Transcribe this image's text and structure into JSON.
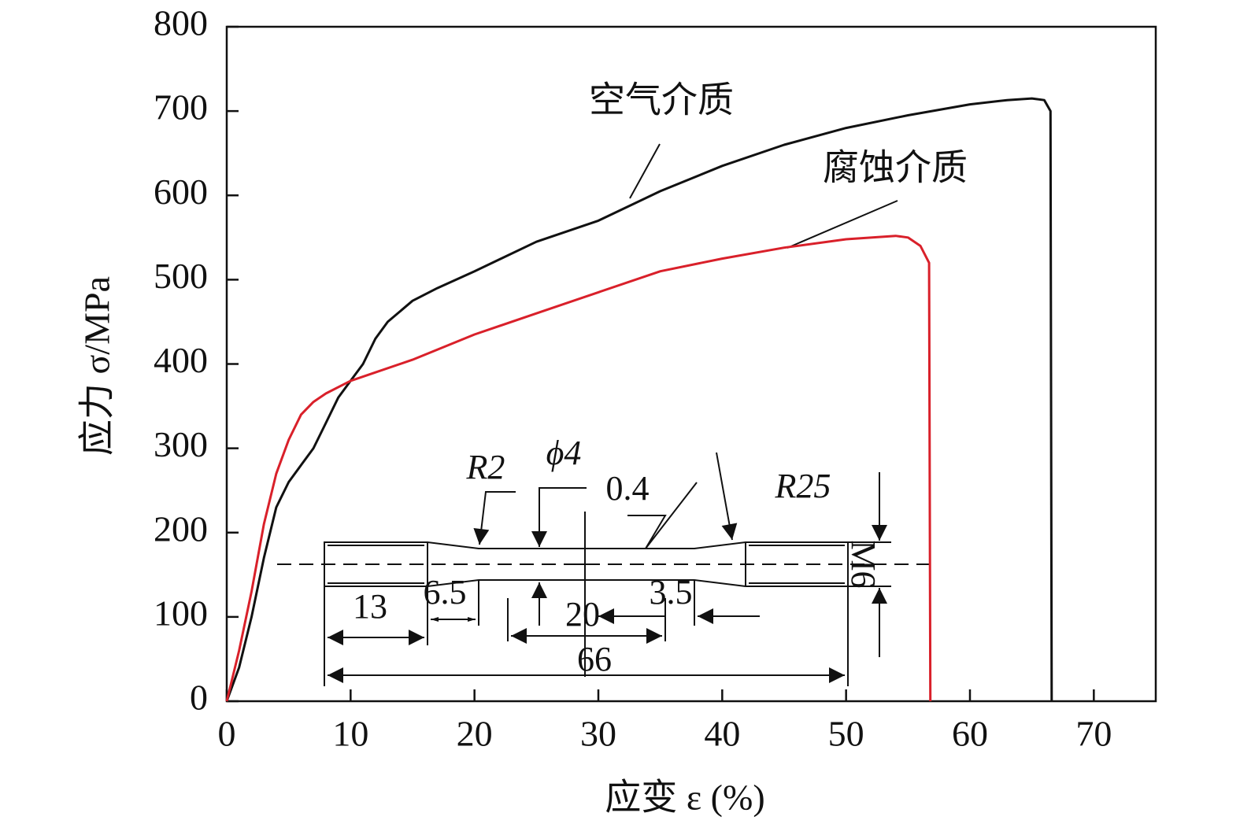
{
  "chart_data": {
    "type": "line",
    "xlabel": "应变 ε (%)",
    "ylabel": "应力 σ/MPa",
    "xlim": [
      0,
      75
    ],
    "ylim": [
      0,
      800
    ],
    "xticks": [
      0,
      10,
      20,
      30,
      40,
      50,
      60,
      70
    ],
    "yticks": [
      0,
      100,
      200,
      300,
      400,
      500,
      600,
      700,
      800
    ],
    "series": [
      {
        "name": "空气介质",
        "color": "#111111",
        "x": [
          0,
          1,
          2,
          3,
          4,
          5,
          6,
          7,
          8,
          9,
          10,
          11,
          12,
          13,
          15,
          17,
          20,
          25,
          30,
          35,
          40,
          45,
          50,
          55,
          60,
          63,
          65,
          66,
          66.5,
          66.6
        ],
        "values": [
          0,
          40,
          100,
          170,
          230,
          260,
          280,
          300,
          330,
          360,
          380,
          400,
          430,
          450,
          475,
          490,
          510,
          545,
          570,
          605,
          635,
          660,
          680,
          695,
          708,
          713,
          715,
          713,
          700,
          0
        ]
      },
      {
        "name": "腐蚀介质",
        "color": "#d9202a",
        "x": [
          0,
          1,
          2,
          3,
          4,
          5,
          6,
          7,
          8,
          10,
          12,
          15,
          20,
          25,
          30,
          35,
          40,
          45,
          50,
          54,
          55,
          56,
          56.7,
          56.8
        ],
        "values": [
          0,
          60,
          130,
          210,
          270,
          310,
          340,
          355,
          365,
          380,
          390,
          405,
          435,
          460,
          485,
          510,
          525,
          538,
          548,
          552,
          550,
          540,
          520,
          0
        ]
      }
    ],
    "inset": {
      "labels": [
        "R2",
        "ϕ4",
        "0.4",
        "R25",
        "M6",
        "13",
        "6.5",
        "20",
        "3.5",
        "66"
      ]
    }
  }
}
